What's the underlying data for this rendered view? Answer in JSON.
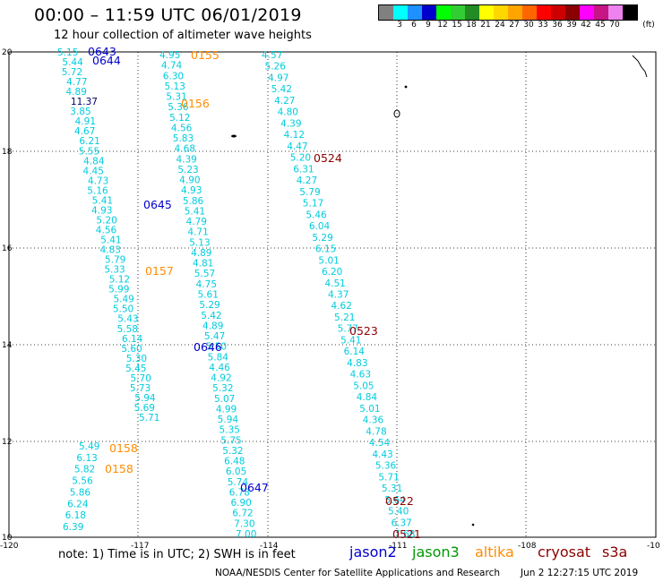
{
  "title": "00:00 – 11:59 UTC 06/01/2019",
  "subtitle": "12 hour collection of altimeter wave heights",
  "colorbar": {
    "unit": "(ft)",
    "colors": [
      "#808080",
      "#00ffff",
      "#1e90ff",
      "#0000cd",
      "#00ff00",
      "#32cd32",
      "#228b22",
      "#ffff00",
      "#ffd700",
      "#ffa500",
      "#ff6600",
      "#ff0000",
      "#cc0000",
      "#8b0000",
      "#ff00ff",
      "#c71585",
      "#ee82ee",
      "#000000"
    ],
    "labels": [
      "3",
      "6",
      "9",
      "12",
      "15",
      "18",
      "21",
      "24",
      "27",
      "30",
      "33",
      "36",
      "39",
      "42",
      "45",
      "70"
    ]
  },
  "axes": {
    "x_ticks": [
      "-120",
      "-117",
      "-114",
      "-111",
      "-108",
      "-10"
    ],
    "y_ticks": [
      "20",
      "18",
      "16",
      "14",
      "12",
      "10"
    ]
  },
  "tracks": [
    {
      "values": [
        "5.15",
        "5.44",
        "5.72",
        "4.77",
        "4.89",
        "11.37",
        "3.85",
        "4.91",
        "4.67",
        "6.21",
        "5.55",
        "4.84",
        "4.45",
        "4.73",
        "5.16",
        "5.41",
        "4.93",
        "5.20",
        "4.56",
        "5.41",
        "4.83",
        "5.79",
        "5.33",
        "5.12",
        "5.99",
        "5.49",
        "5.50",
        "5.43",
        "5.58",
        "6.14",
        "5.60",
        "5.30",
        "5.45",
        "5.70",
        "5.73",
        "5.94",
        "5.69",
        "5.71"
      ]
    },
    {
      "values": [
        "5.49",
        "6.13",
        "5.82",
        "5.56",
        "5.86",
        "6.24",
        "6.18",
        "6.39"
      ]
    },
    {
      "values": [
        "4.95",
        "4.74",
        "6.30",
        "5.13",
        "5.31",
        "5.36",
        "5.12",
        "4.56",
        "5.83",
        "4.68",
        "4.39",
        "5.23",
        "4.90",
        "4.93",
        "5.86",
        "5.41",
        "4.79",
        "4.71",
        "5.13",
        "4.89",
        "4.81",
        "5.57",
        "4.75",
        "5.61",
        "5.29",
        "5.42",
        "4.89",
        "5.47",
        "5.50",
        "5.84",
        "4.46",
        "4.92",
        "5.32",
        "5.07",
        "4.99",
        "5.94",
        "5.35",
        "5.75",
        "5.32",
        "6.48",
        "6.05",
        "5.74",
        "6.78",
        "6.90",
        "6.72",
        "7.30",
        "7.00"
      ]
    },
    {
      "values": [
        "4.57",
        "5.26",
        "4.97",
        "5.42",
        "4.27",
        "4.80",
        "4.39",
        "4.12",
        "4.47",
        "5.20",
        "6.31",
        "4.27",
        "5.79",
        "5.17",
        "5.46",
        "6.04",
        "5.29",
        "6.15",
        "5.01",
        "6.20",
        "4.51",
        "4.37",
        "4.62",
        "5.21",
        "5.77",
        "5.41",
        "6.14",
        "4.83",
        "4.63",
        "5.05",
        "4.84",
        "5.01",
        "4.36",
        "4.78",
        "4.54",
        "4.43",
        "5.36",
        "5.71",
        "5.31",
        "5.64",
        "5.40",
        "6.37",
        "7.68"
      ]
    }
  ],
  "passes": [
    {
      "label": "0643",
      "mission": "jason2"
    },
    {
      "label": "0644",
      "mission": "jason2"
    },
    {
      "label": "0155",
      "mission": "altika"
    },
    {
      "label": "0156",
      "mission": "altika"
    },
    {
      "label": "0524",
      "mission": "cryosat"
    },
    {
      "label": "0645",
      "mission": "jason2"
    },
    {
      "label": "0157",
      "mission": "altika"
    },
    {
      "label": "0523",
      "mission": "cryosat"
    },
    {
      "label": "0646",
      "mission": "jason2"
    },
    {
      "label": "0158",
      "mission": "altika"
    },
    {
      "label": "0158",
      "mission": "altika"
    },
    {
      "label": "0647",
      "mission": "jason2"
    },
    {
      "label": "0522",
      "mission": "cryosat"
    },
    {
      "label": "0521",
      "mission": "cryosat"
    }
  ],
  "mission_colors": {
    "jason2": "#0000cd",
    "jason3": "#009900",
    "altika": "#ff8c00",
    "cryosat": "#8b0000",
    "s3a": "#8b0000",
    "value": "#00ccdd"
  },
  "footer": {
    "note": "note:  1) Time is in UTC;  2) SWH is in feet",
    "sat_jason2": "jason2",
    "sat_jason3": "jason3",
    "sat_altika": "altika",
    "sat_cryosat": "cryosat",
    "sat_s3a": "s3a",
    "credit": "NOAA/NESDIS Center for Satellite Applications and Research",
    "credit_time": "Jun  2 12:27:15 UTC 2019"
  }
}
